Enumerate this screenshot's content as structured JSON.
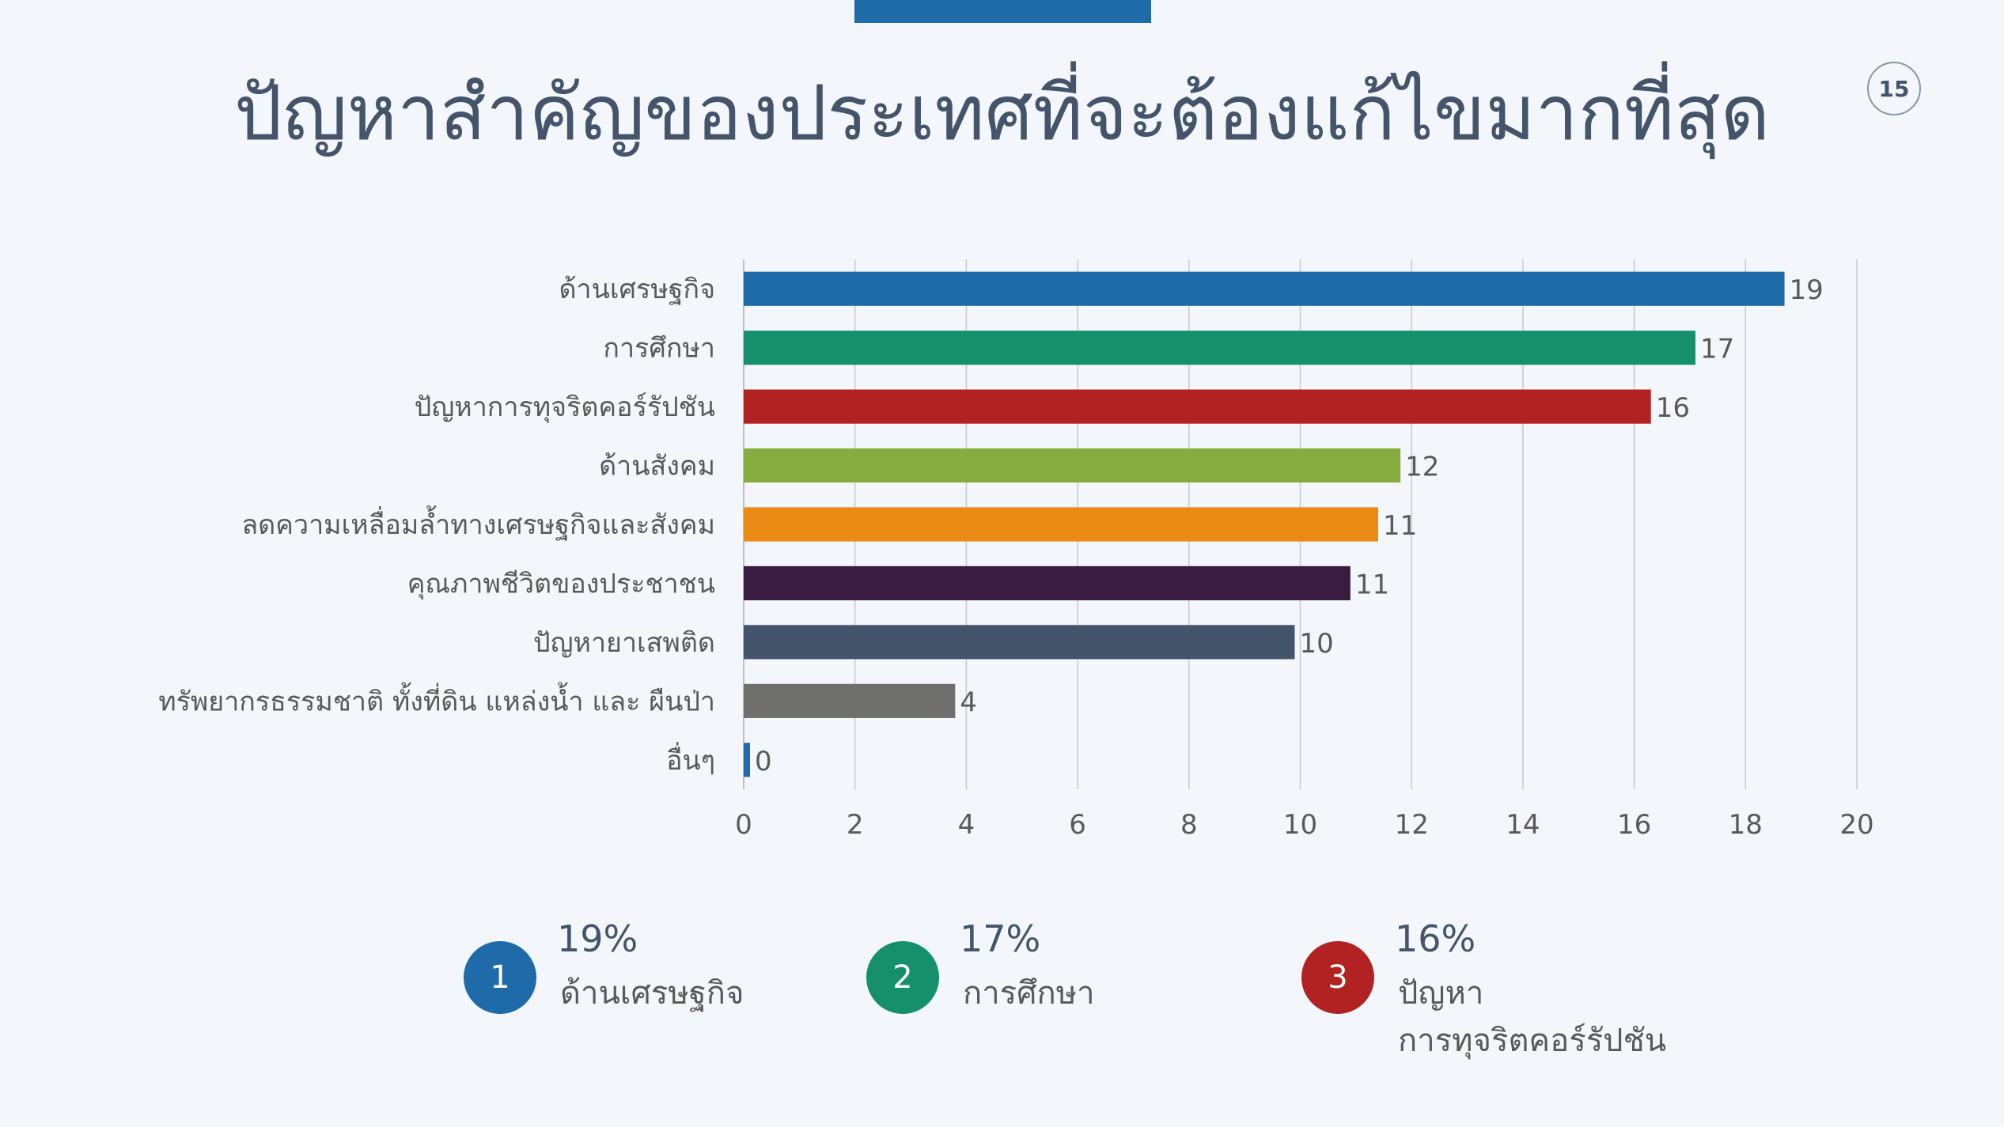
{
  "slide": {
    "title": "ปัญหาสำคัญของประเทศที่จะต้องแก้ไขมากที่สุด",
    "page_number": "15",
    "accent_color": "#1f6aa8"
  },
  "chart_data": {
    "type": "bar",
    "orientation": "horizontal",
    "categories": [
      "ด้านเศรษฐกิจ",
      "การศึกษา",
      "ปัญหาการทุจริตคอร์รัปชัน",
      "ด้านสังคม",
      "ลดความเหลื่อมล้ำทางเศรษฐกิจและสังคม",
      "คุณภาพชีวิตของประชาชน",
      "ปัญหายาเสพติด",
      "ทรัพยากรธรรมชาติ ทั้งที่ดิน แหล่งน้ำ และ ผืนป่า",
      "อื่นๆ"
    ],
    "values": [
      18.7,
      17.1,
      16.3,
      11.8,
      11.4,
      10.9,
      9.9,
      3.8,
      0.1
    ],
    "data_labels": [
      "19",
      "17",
      "16",
      "12",
      "11",
      "11",
      "10",
      "4",
      "0"
    ],
    "colors": [
      "#1f6aa8",
      "#16906a",
      "#b22222",
      "#86ab3f",
      "#eb8a15",
      "#3a1c40",
      "#44546a",
      "#6f706e",
      "#1f6aa8"
    ],
    "xlim": [
      0,
      20
    ],
    "x_ticks": [
      "0",
      "2",
      "4",
      "6",
      "8",
      "10",
      "12",
      "14",
      "16",
      "18",
      "20"
    ],
    "grid": true,
    "title": "",
    "xlabel": "",
    "ylabel": ""
  },
  "summary": [
    {
      "rank": "1",
      "percent": "19%",
      "label_lines": [
        "ด้านเศรษฐกิจ"
      ],
      "color": "#1f6aa8"
    },
    {
      "rank": "2",
      "percent": "17%",
      "label_lines": [
        "การศึกษา"
      ],
      "color": "#16906a"
    },
    {
      "rank": "3",
      "percent": "16%",
      "label_lines": [
        "ปัญหา",
        "การทุจริตคอร์รัปชัน"
      ],
      "color": "#b22222"
    }
  ]
}
